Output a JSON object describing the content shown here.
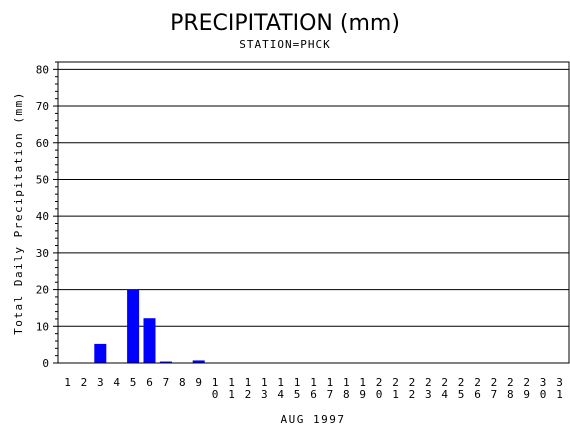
{
  "chart_data": {
    "type": "bar",
    "title": "PRECIPITATION (mm)",
    "subtitle": "STATION=PHCK",
    "xlabel": "AUG 1997",
    "ylabel": "Total Daily Precipitation (mm)",
    "ylim": [
      0,
      82
    ],
    "yticks": [
      0,
      10,
      20,
      30,
      40,
      50,
      60,
      70,
      80
    ],
    "grid": true,
    "bar_color": "#0000ff",
    "categories": [
      "1",
      "2",
      "3",
      "4",
      "5",
      "6",
      "7",
      "8",
      "9",
      "10",
      "11",
      "12",
      "13",
      "14",
      "15",
      "16",
      "17",
      "18",
      "19",
      "20",
      "21",
      "22",
      "23",
      "24",
      "25",
      "26",
      "27",
      "28",
      "29",
      "30",
      "31"
    ],
    "values": [
      0,
      0,
      5.2,
      0,
      20,
      12.2,
      0.4,
      0,
      0.7,
      0,
      0,
      0,
      0,
      0,
      0,
      0,
      0,
      0,
      0,
      0,
      0,
      0,
      0,
      0,
      0,
      0,
      0,
      0,
      0,
      0,
      0
    ]
  }
}
